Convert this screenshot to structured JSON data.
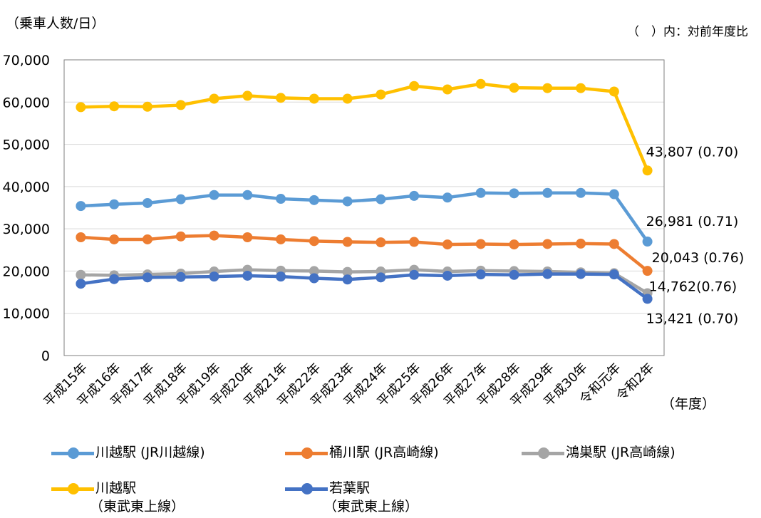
{
  "header": {
    "y_unit": "（乗車人数/日）",
    "note": "（　）内：対前年度比",
    "x_unit": "（年度）"
  },
  "colors": {
    "kawagoe_jr": "#5B9BD5",
    "okegawa": "#ED7D31",
    "konosu": "#A5A5A5",
    "kawagoe_tobu": "#FFC000",
    "wakaba": "#4472C4",
    "grid": "#d9d9d9",
    "axis": "#7f7f7f"
  },
  "chart_data": {
    "type": "line",
    "categories": [
      "平成15年",
      "平成16年",
      "平成17年",
      "平成18年",
      "平成19年",
      "平成20年",
      "平成21年",
      "平成22年",
      "平成23年",
      "平成24年",
      "平成25年",
      "平成26年",
      "平成27年",
      "平成28年",
      "平成29年",
      "平成30年",
      "令和元年",
      "令和2年"
    ],
    "ylim": [
      0,
      70000
    ],
    "yticks": [
      "0",
      "10,000",
      "20,000",
      "30,000",
      "40,000",
      "50,000",
      "60,000",
      "70,000"
    ],
    "grid": true,
    "series": [
      {
        "key": "kawagoe_tobu",
        "name": "川越駅",
        "name_sub": "（東武東上線）",
        "values": [
          58800,
          59000,
          58900,
          59300,
          60800,
          61500,
          61000,
          60800,
          60800,
          61800,
          63800,
          63000,
          64300,
          63400,
          63300,
          63300,
          62500,
          43807
        ],
        "end_label": "43,807 (0.70)"
      },
      {
        "key": "kawagoe_jr",
        "name": "川越駅 (JR川越線)",
        "name_sub": "",
        "values": [
          35400,
          35800,
          36100,
          37000,
          38000,
          38000,
          37100,
          36800,
          36500,
          37000,
          37800,
          37400,
          38500,
          38400,
          38500,
          38500,
          38200,
          26981
        ],
        "end_label": "26,981 (0.71)"
      },
      {
        "key": "okegawa",
        "name": "桶川駅 (JR高崎線)",
        "name_sub": "",
        "values": [
          28000,
          27500,
          27500,
          28200,
          28400,
          28000,
          27500,
          27100,
          26900,
          26800,
          26900,
          26300,
          26400,
          26300,
          26400,
          26500,
          26400,
          20043
        ],
        "end_label": "20,043 (0.76)"
      },
      {
        "key": "konosu",
        "name": "鴻巣駅 (JR高崎線)",
        "name_sub": "",
        "values": [
          19100,
          19000,
          19200,
          19400,
          19900,
          20300,
          20100,
          20000,
          19800,
          19900,
          20300,
          19900,
          20100,
          20000,
          19900,
          19700,
          19500,
          14762
        ],
        "end_label": "14,762(0.76)"
      },
      {
        "key": "wakaba",
        "name": "若葉駅",
        "name_sub": "（東武東上線）",
        "values": [
          17000,
          18100,
          18500,
          18600,
          18700,
          18900,
          18700,
          18300,
          18000,
          18500,
          19100,
          18900,
          19200,
          19100,
          19300,
          19300,
          19200,
          13421
        ],
        "end_label": "13,421 (0.70)"
      }
    ]
  }
}
